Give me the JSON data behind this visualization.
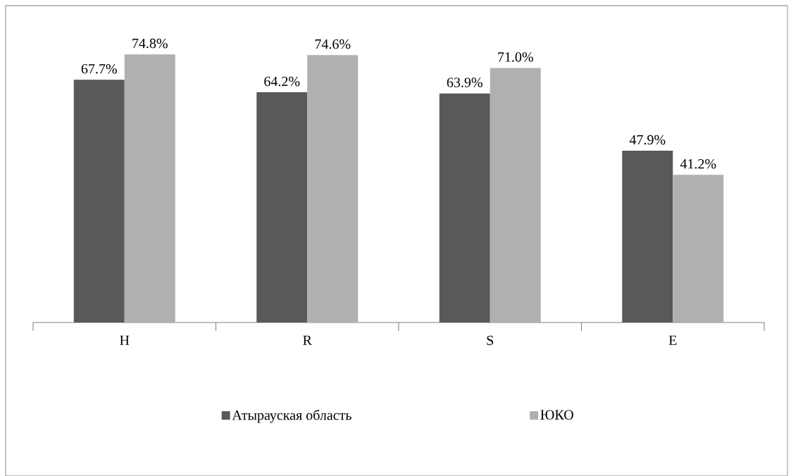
{
  "chart_data": {
    "type": "bar",
    "categories": [
      "H",
      "R",
      "S",
      "E"
    ],
    "series": [
      {
        "name": "Атырауская область",
        "color": "#595959",
        "values": [
          67.7,
          64.2,
          63.9,
          47.9
        ],
        "value_labels": [
          "67.7%",
          "64.2%",
          "63.9%",
          "47.9%"
        ]
      },
      {
        "name": "ЮКО",
        "color": "#b0b0b0",
        "values": [
          74.8,
          74.6,
          71.0,
          41.2
        ],
        "value_labels": [
          "74.8%",
          "74.6%",
          "71.0%",
          "41.2%"
        ]
      }
    ],
    "legend": "bottom"
  }
}
